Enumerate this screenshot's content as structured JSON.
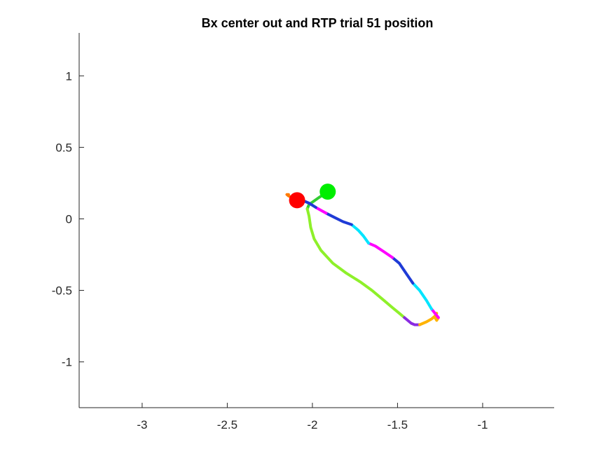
{
  "chart_data": {
    "type": "line",
    "title": "Bx  center out and RTP trial 51 position",
    "xlabel": "",
    "ylabel": "",
    "xlim": [
      -3.37,
      -0.58
    ],
    "ylim": [
      -1.32,
      1.3
    ],
    "xticks": [
      -3,
      -2.5,
      -2,
      -1.5,
      -1
    ],
    "xtick_labels": [
      "-3",
      "-2.5",
      "-2",
      "-1.5",
      "-1"
    ],
    "yticks": [
      1,
      0.5,
      0,
      -0.5,
      -1
    ],
    "ytick_labels": [
      "1",
      "0.5",
      "0",
      "-0.5",
      "-1"
    ],
    "grid": false,
    "axes_box": "left-and-bottom",
    "segments": [
      {
        "color": "#33cc33",
        "points": [
          [
            -1.91,
            0.19
          ],
          [
            -1.96,
            0.15
          ],
          [
            -2.02,
            0.1
          ],
          [
            -2.03,
            0.07
          ]
        ]
      },
      {
        "color": "#8ef02a",
        "points": [
          [
            -2.03,
            0.07
          ],
          [
            -2.02,
            0.02
          ],
          [
            -2.01,
            -0.06
          ],
          [
            -1.99,
            -0.14
          ],
          [
            -1.95,
            -0.22
          ],
          [
            -1.88,
            -0.31
          ],
          [
            -1.8,
            -0.38
          ],
          [
            -1.72,
            -0.44
          ],
          [
            -1.65,
            -0.5
          ],
          [
            -1.59,
            -0.56
          ],
          [
            -1.53,
            -0.62
          ],
          [
            -1.49,
            -0.66
          ],
          [
            -1.46,
            -0.69
          ]
        ]
      },
      {
        "color": "#8a2be2",
        "points": [
          [
            -1.46,
            -0.69
          ],
          [
            -1.44,
            -0.71
          ],
          [
            -1.42,
            -0.73
          ],
          [
            -1.4,
            -0.74
          ],
          [
            -1.37,
            -0.74
          ]
        ]
      },
      {
        "color": "#ffb300",
        "points": [
          [
            -1.37,
            -0.74
          ],
          [
            -1.33,
            -0.72
          ],
          [
            -1.3,
            -0.7
          ],
          [
            -1.28,
            -0.68
          ],
          [
            -1.27,
            -0.66
          ],
          [
            -1.28,
            -0.69
          ],
          [
            -1.27,
            -0.71
          ],
          [
            -1.26,
            -0.69
          ]
        ]
      },
      {
        "color": "#ff00ff",
        "points": [
          [
            -1.26,
            -0.69
          ],
          [
            -1.28,
            -0.66
          ],
          [
            -1.3,
            -0.63
          ]
        ]
      },
      {
        "color": "#00e5ff",
        "points": [
          [
            -1.3,
            -0.63
          ],
          [
            -1.33,
            -0.57
          ],
          [
            -1.37,
            -0.5
          ],
          [
            -1.41,
            -0.45
          ]
        ]
      },
      {
        "color": "#1f3bd6",
        "points": [
          [
            -1.41,
            -0.45
          ],
          [
            -1.45,
            -0.38
          ],
          [
            -1.49,
            -0.31
          ],
          [
            -1.53,
            -0.27
          ]
        ]
      },
      {
        "color": "#ff00ff",
        "points": [
          [
            -1.53,
            -0.27
          ],
          [
            -1.58,
            -0.23
          ],
          [
            -1.63,
            -0.19
          ],
          [
            -1.67,
            -0.17
          ]
        ]
      },
      {
        "color": "#00e5ff",
        "points": [
          [
            -1.67,
            -0.17
          ],
          [
            -1.7,
            -0.12
          ],
          [
            -1.73,
            -0.08
          ],
          [
            -1.77,
            -0.04
          ]
        ]
      },
      {
        "color": "#1f3bd6",
        "points": [
          [
            -1.77,
            -0.04
          ],
          [
            -1.82,
            -0.02
          ],
          [
            -1.87,
            0.01
          ],
          [
            -1.92,
            0.04
          ]
        ]
      },
      {
        "color": "#ff00ff",
        "points": [
          [
            -1.92,
            0.04
          ],
          [
            -1.95,
            0.06
          ],
          [
            -1.98,
            0.08
          ]
        ]
      },
      {
        "color": "#1f3bd6",
        "points": [
          [
            -1.98,
            0.08
          ],
          [
            -2.02,
            0.11
          ],
          [
            -2.06,
            0.13
          ],
          [
            -2.09,
            0.13
          ]
        ]
      },
      {
        "color": "#ff7a00",
        "points": [
          [
            -2.09,
            0.13
          ],
          [
            -2.12,
            0.15
          ],
          [
            -2.14,
            0.16
          ],
          [
            -2.15,
            0.17
          ],
          [
            -2.14,
            0.17
          ]
        ]
      }
    ],
    "markers": [
      {
        "name": "start-marker",
        "x": -1.91,
        "y": 0.19,
        "color": "#00ee00"
      },
      {
        "name": "end-marker",
        "x": -2.09,
        "y": 0.13,
        "color": "#ff0000"
      }
    ]
  }
}
